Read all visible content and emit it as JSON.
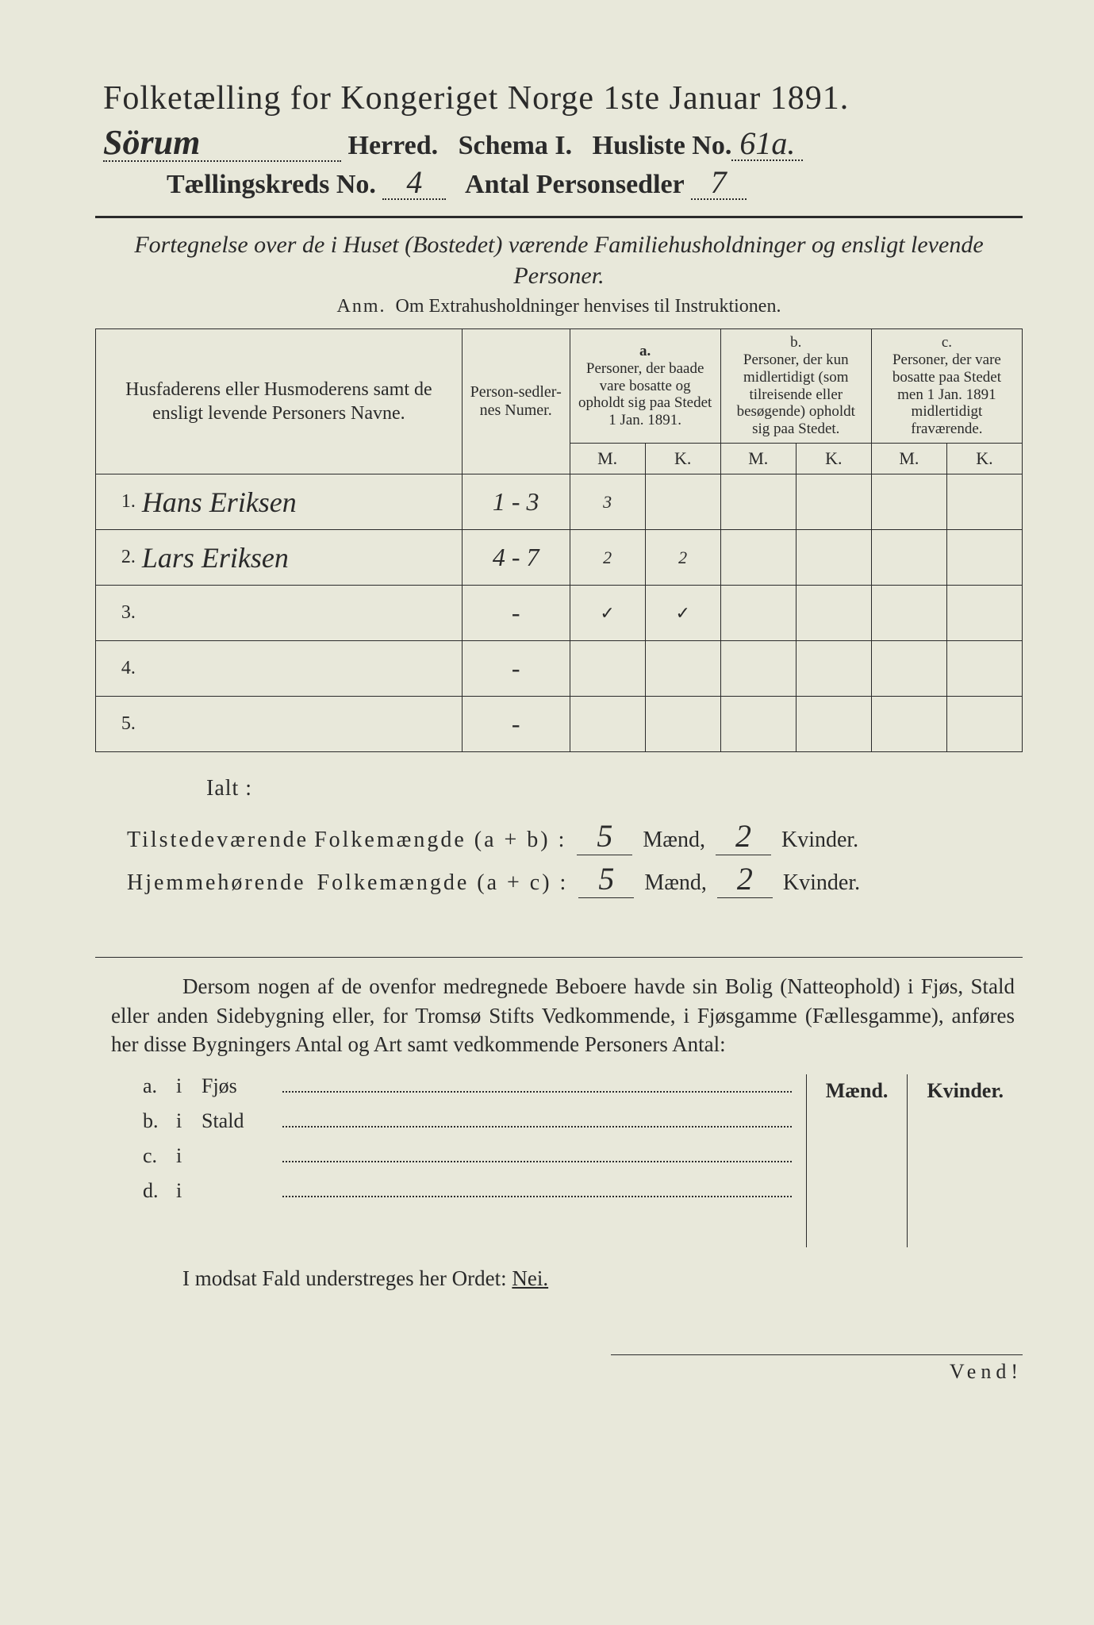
{
  "title": "Folketælling for Kongeriget Norge 1ste Januar 1891.",
  "header": {
    "herred_value": "Sörum",
    "herred_label": "Herred.",
    "schema_label": "Schema I.",
    "husliste_label": "Husliste No.",
    "husliste_value": "61a.",
    "kreds_label": "Tællingskreds No.",
    "kreds_value": "4",
    "antal_label": "Antal Personsedler",
    "antal_value": "7"
  },
  "fortegnelse": "Fortegnelse over de i Huset (Bostedet) værende Familiehusholdninger og ensligt levende Personer.",
  "anm_label": "Anm.",
  "anm_text": "Om Extrahusholdninger henvises til Instruktionen.",
  "table": {
    "col_names": "Husfaderens eller Husmoderens samt de ensligt levende Personers Navne.",
    "col_num": "Person-sedler-nes Numer.",
    "col_a_label": "a.",
    "col_a": "Personer, der baade vare bosatte og opholdt sig paa Stedet 1 Jan. 1891.",
    "col_b_label": "b.",
    "col_b": "Personer, der kun midlertidigt (som tilreisende eller besøgende) opholdt sig paa Stedet.",
    "col_c_label": "c.",
    "col_c": "Personer, der vare bosatte paa Stedet men 1 Jan. 1891 midlertidigt fraværende.",
    "m": "M.",
    "k": "K.",
    "rows": [
      {
        "n": "1.",
        "name": "Hans Eriksen",
        "num": "1 - 3",
        "am": "3",
        "ak": "",
        "bm": "",
        "bk": "",
        "cm": "",
        "ck": ""
      },
      {
        "n": "2.",
        "name": "Lars Eriksen",
        "num": "4 - 7",
        "am": "2",
        "ak": "2",
        "bm": "",
        "bk": "",
        "cm": "",
        "ck": ""
      },
      {
        "n": "3.",
        "name": "",
        "num": "-",
        "am": "✓",
        "ak": "✓",
        "bm": "",
        "bk": "",
        "cm": "",
        "ck": ""
      },
      {
        "n": "4.",
        "name": "",
        "num": "-",
        "am": "",
        "ak": "",
        "bm": "",
        "bk": "",
        "cm": "",
        "ck": ""
      },
      {
        "n": "5.",
        "name": "",
        "num": "-",
        "am": "",
        "ak": "",
        "bm": "",
        "bk": "",
        "cm": "",
        "ck": ""
      }
    ]
  },
  "ialt": "Ialt :",
  "sums": {
    "line1_label_a": "Tilstedeværende",
    "line1_label_b": "Folkemængde (a + b) :",
    "line2_label_a": "Hjemmehørende",
    "line2_label_b": "Folkemængde (a + c) :",
    "maend": "Mænd,",
    "kvinder": "Kvinder.",
    "v1m": "5",
    "v1k": "2",
    "v2m": "5",
    "v2k": "2"
  },
  "dersom": "Dersom nogen af de ovenfor medregnede Beboere havde sin Bolig (Natteophold) i Fjøs, Stald eller anden Sidebygning eller, for Tromsø Stifts Vedkommende, i Fjøsgamme (Fællesgamme), anføres her disse Bygningers Antal og Art samt vedkommende Personers Antal:",
  "bldg": {
    "a": {
      "l": "a.",
      "i": "i",
      "n": "Fjøs"
    },
    "b": {
      "l": "b.",
      "i": "i",
      "n": "Stald"
    },
    "c": {
      "l": "c.",
      "i": "i",
      "n": ""
    },
    "d": {
      "l": "d.",
      "i": "i",
      "n": ""
    },
    "maend": "Mænd.",
    "kvinder": "Kvinder."
  },
  "modsat": "I modsat Fald understreges her Ordet:",
  "nei": "Nei.",
  "vend": "Vend!",
  "colors": {
    "paper": "#e8e8da",
    "ink": "#2a2a2a",
    "background": "#3a3a3a"
  }
}
